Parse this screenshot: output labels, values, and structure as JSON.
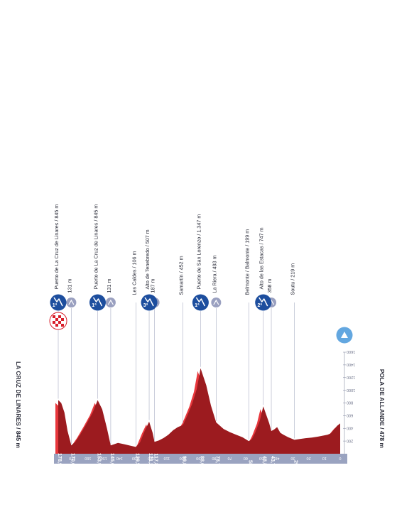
{
  "chart_data": {
    "type": "area",
    "title": "",
    "start_label": "POLA DE ALLANDE / 478 m",
    "finish_label": "LA CRUZ DE LINARES / 845 m",
    "xlabel": "km",
    "ylabel": "",
    "orientation": "rotated-180",
    "xlim": [
      0,
      178.9
    ],
    "ylim": [
      0,
      1600
    ],
    "x_ticks": [
      0,
      10,
      20,
      30,
      40,
      50,
      60,
      70,
      80,
      90,
      100,
      110,
      120,
      130,
      140,
      150,
      160,
      170
    ],
    "y_ticks": [
      200,
      400,
      600,
      800,
      1000,
      1200,
      1400,
      1600
    ],
    "profile": [
      [
        0,
        478
      ],
      [
        2,
        440
      ],
      [
        4,
        380
      ],
      [
        6,
        320
      ],
      [
        8,
        300
      ],
      [
        10,
        290
      ],
      [
        14,
        270
      ],
      [
        18,
        255
      ],
      [
        22,
        245
      ],
      [
        26,
        230
      ],
      [
        29,
        219
      ],
      [
        33,
        260
      ],
      [
        36,
        300
      ],
      [
        38,
        330
      ],
      [
        40,
        420
      ],
      [
        42,
        380
      ],
      [
        43.7,
        358
      ],
      [
        45,
        480
      ],
      [
        47,
        620
      ],
      [
        48.8,
        747
      ],
      [
        51,
        520
      ],
      [
        54,
        330
      ],
      [
        56,
        230
      ],
      [
        58,
        199
      ],
      [
        62,
        260
      ],
      [
        66,
        300
      ],
      [
        70,
        340
      ],
      [
        74,
        390
      ],
      [
        78.7,
        493
      ],
      [
        82,
        760
      ],
      [
        85,
        1080
      ],
      [
        88.6,
        1347
      ],
      [
        91,
        1020
      ],
      [
        94,
        780
      ],
      [
        97,
        600
      ],
      [
        99.8,
        452
      ],
      [
        103,
        420
      ],
      [
        106,
        370
      ],
      [
        109,
        300
      ],
      [
        112,
        250
      ],
      [
        115,
        210
      ],
      [
        117.8,
        187
      ],
      [
        119,
        330
      ],
      [
        121.2,
        507
      ],
      [
        124,
        360
      ],
      [
        127,
        180
      ],
      [
        129.5,
        106
      ],
      [
        133,
        125
      ],
      [
        137,
        150
      ],
      [
        141,
        170
      ],
      [
        145.6,
        131
      ],
      [
        148,
        400
      ],
      [
        151,
        700
      ],
      [
        153.9,
        845
      ],
      [
        157,
        650
      ],
      [
        161,
        470
      ],
      [
        165,
        300
      ],
      [
        168,
        190
      ],
      [
        170.6,
        131
      ],
      [
        173,
        360
      ],
      [
        175,
        650
      ],
      [
        177,
        800
      ],
      [
        178.9,
        845
      ]
    ],
    "marked_km": [
      {
        "km": "29",
        "x": 29
      },
      {
        "km": "43,7",
        "x": 43.7
      },
      {
        "km": "48,8",
        "x": 48.8
      },
      {
        "km": "58",
        "x": 58
      },
      {
        "km": "78,7",
        "x": 78.7
      },
      {
        "km": "88,6",
        "x": 88.6
      },
      {
        "km": "99,8",
        "x": 99.8
      },
      {
        "km": "117,8",
        "x": 117.8
      },
      {
        "km": "121,2",
        "x": 121.2
      },
      {
        "km": "129,5",
        "x": 129.5
      },
      {
        "km": "145,6",
        "x": 145.6
      },
      {
        "km": "153,9",
        "x": 153.9
      },
      {
        "km": "170,6",
        "x": 170.6
      },
      {
        "km": "178,9",
        "x": 178.9
      }
    ],
    "annotations": [
      {
        "x": 29,
        "y": 219,
        "label": "Soutu / 219 m",
        "marker": "none"
      },
      {
        "x": 43.7,
        "y": 358,
        "label": "358 m",
        "marker": "sprint"
      },
      {
        "x": 48.8,
        "y": 747,
        "label": "Alto de las Estacas / 747 m",
        "marker": "climb",
        "category": "2ª"
      },
      {
        "x": 58,
        "y": 199,
        "label": "Belmonte / Balmonte / 199 m",
        "marker": "none"
      },
      {
        "x": 78.7,
        "y": 493,
        "label": "La Riera / 493 m",
        "marker": "sprint"
      },
      {
        "x": 88.6,
        "y": 1347,
        "label": "Puerto de San Lorenzo / 1.347 m",
        "marker": "climb",
        "category": "1ª"
      },
      {
        "x": 99.8,
        "y": 452,
        "label": "Samartín / 452 m",
        "marker": "none"
      },
      {
        "x": 117.8,
        "y": 187,
        "label": "187 m",
        "marker": "sprint"
      },
      {
        "x": 121.2,
        "y": 507,
        "label": "Alto de Tenebredo / 507 m",
        "marker": "climb",
        "category": "3ª"
      },
      {
        "x": 129.5,
        "y": 106,
        "label": "Les Caldes / 106 m",
        "marker": "none"
      },
      {
        "x": 145.6,
        "y": 131,
        "label": "131 m",
        "marker": "sprint"
      },
      {
        "x": 153.9,
        "y": 845,
        "label": "Puerto de La Cruz de Linares / 845 m",
        "marker": "climb",
        "category": "1ª"
      },
      {
        "x": 170.6,
        "y": 131,
        "label": "131 m",
        "marker": "sprint"
      },
      {
        "x": 178.9,
        "y": 845,
        "label": "Puerto de La Cruz de Linares / 845 m",
        "marker": "climb-finish",
        "category": "1ª"
      }
    ],
    "grid": false,
    "colors": {
      "profile_fill": "#9c1b1f",
      "profile_side": "#e8373c",
      "axis_band": "#9aa3c0",
      "marker_blue": "#1d4e9e",
      "marker_gray": "#9aa0c0",
      "start_marker": "#63a7e0",
      "finish_check": "#d81e2a"
    }
  }
}
